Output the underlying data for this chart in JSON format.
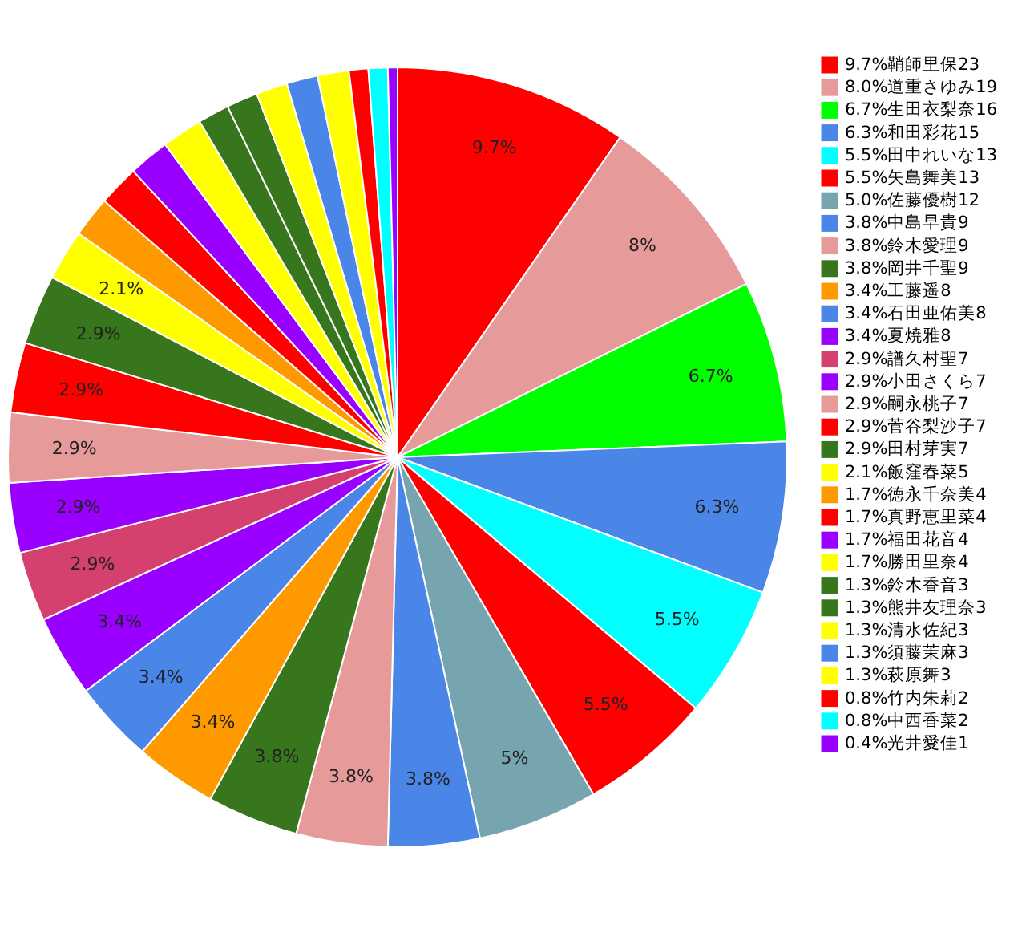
{
  "chart_data": {
    "type": "pie",
    "categories": [
      "9.7%鞘師里保23",
      "8.0%道重さゆみ19",
      "6.7%生田衣梨奈16",
      "6.3%和田彩花15",
      "5.5%田中れいな13",
      "5.5%矢島舞美13",
      "5.0%佐藤優樹12",
      "3.8%中島早貴9",
      "3.8%鈴木愛理9",
      "3.8%岡井千聖9",
      "3.4%工藤遥8",
      "3.4%石田亜佑美8",
      "3.4%夏焼雅8",
      "2.9%譜久村聖7",
      "2.9%小田さくら7",
      "2.9%嗣永桃子7",
      "2.9%菅谷梨沙子7",
      "2.9%田村芽実7",
      "2.1%飯窪春菜5",
      "1.7%徳永千奈美4",
      "1.7%真野恵里菜4",
      "1.7%福田花音4",
      "1.7%勝田里奈4",
      "1.3%鈴木香音3",
      "1.3%熊井友理奈3",
      "1.3%清水佐紀3",
      "1.3%須藤茉麻3",
      "1.3%萩原舞3",
      "0.8%竹内朱莉2",
      "0.8%中西香菜2",
      "0.4%光井愛佳1"
    ],
    "values": [
      9.7,
      8.0,
      6.7,
      6.3,
      5.5,
      5.5,
      5.0,
      3.8,
      3.8,
      3.8,
      3.4,
      3.4,
      3.4,
      2.9,
      2.9,
      2.9,
      2.9,
      2.9,
      2.1,
      1.7,
      1.7,
      1.7,
      1.7,
      1.3,
      1.3,
      1.3,
      1.3,
      1.3,
      0.8,
      0.8,
      0.4
    ],
    "colors": [
      "#ff0000",
      "#e69a9a",
      "#00ff00",
      "#4a86e8",
      "#00ffff",
      "#ff0000",
      "#76a5af",
      "#4a86e8",
      "#e69a9a",
      "#38761d",
      "#ff9900",
      "#4a86e8",
      "#9900ff",
      "#d5416f",
      "#9900ff",
      "#e69a9a",
      "#ff0000",
      "#38761d",
      "#ffff00",
      "#ff9900",
      "#ff0000",
      "#9900ff",
      "#ffff00",
      "#38761d",
      "#38761d",
      "#ffff00",
      "#4a86e8",
      "#ffff00",
      "#ff0000",
      "#00ffff",
      "#9900ff"
    ],
    "value_labels": [
      "9.7%",
      "8%",
      "6.7%",
      "6.3%",
      "5.5%",
      "5.5%",
      "5%",
      "3.8%",
      "3.8%",
      "3.8%",
      "3.4%",
      "3.4%",
      "3.4%",
      "2.9%",
      "2.9%",
      "2.9%",
      "2.9%",
      "2.9%",
      "2.1%",
      null,
      null,
      null,
      null,
      null,
      null,
      null,
      null,
      null,
      null,
      null,
      null
    ],
    "legend": "right"
  }
}
